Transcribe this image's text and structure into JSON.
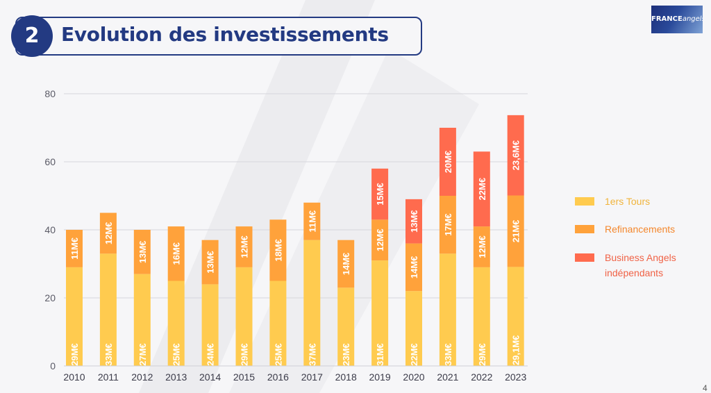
{
  "header": {
    "number": "2",
    "title": "Evolution des investissements"
  },
  "logo": {
    "france": "FRANCE",
    "angels": "angels"
  },
  "colors": {
    "tours": "#ffcb4f",
    "refin": "#ffa23b",
    "ba": "#ff6b4e",
    "title": "#233a82",
    "legend_tours": "#f0b43c",
    "legend_refin": "#f4872c",
    "legend_ba": "#f06246"
  },
  "legend": [
    {
      "label": "1ers Tours",
      "key": "tours"
    },
    {
      "label": "Refinancements",
      "key": "refin"
    },
    {
      "label": "Business Angels indépendants",
      "key": "ba"
    }
  ],
  "page_number": "4",
  "chart_data": {
    "type": "bar",
    "stacked": true,
    "categories": [
      "2010",
      "2011",
      "2012",
      "2013",
      "2014",
      "2015",
      "2016",
      "2017",
      "2018",
      "2019",
      "2020",
      "2021",
      "2022",
      "2023"
    ],
    "ylim": [
      0,
      80
    ],
    "yticks": [
      "0",
      "20",
      "40",
      "60",
      "80"
    ],
    "grid": true,
    "legend_position": "right",
    "series": [
      {
        "name": "1ers Tours",
        "key": "tours",
        "values": [
          29,
          33,
          27,
          25,
          24,
          29,
          25,
          37,
          23,
          31,
          22,
          33,
          29,
          29.1
        ],
        "labels": [
          "29M€",
          "33M€",
          "27M€",
          "25M€",
          "24M€",
          "29M€",
          "25M€",
          "37M€",
          "23M€",
          "31M€",
          "22M€",
          "33M€",
          "29M€",
          "29,1M€"
        ]
      },
      {
        "name": "Refinancements",
        "key": "refin",
        "values": [
          11,
          12,
          13,
          16,
          13,
          12,
          18,
          11,
          14,
          12,
          14,
          17,
          12,
          21
        ],
        "labels": [
          "11M€",
          "12M€",
          "13M€",
          "16M€",
          "13M€",
          "12M€",
          "18M€",
          "11M€",
          "14M€",
          "12M€",
          "14M€",
          "17M€",
          "12M€",
          "21M€"
        ]
      },
      {
        "name": "Business Angels indépendants",
        "key": "ba",
        "values": [
          0,
          0,
          0,
          0,
          0,
          0,
          0,
          0,
          0,
          15,
          13,
          20,
          22,
          23.6
        ],
        "labels": [
          "",
          "",
          "",
          "",
          "",
          "",
          "",
          "",
          "",
          "15M€",
          "13M€",
          "20M€",
          "22M€",
          "23,6M€"
        ]
      }
    ]
  }
}
